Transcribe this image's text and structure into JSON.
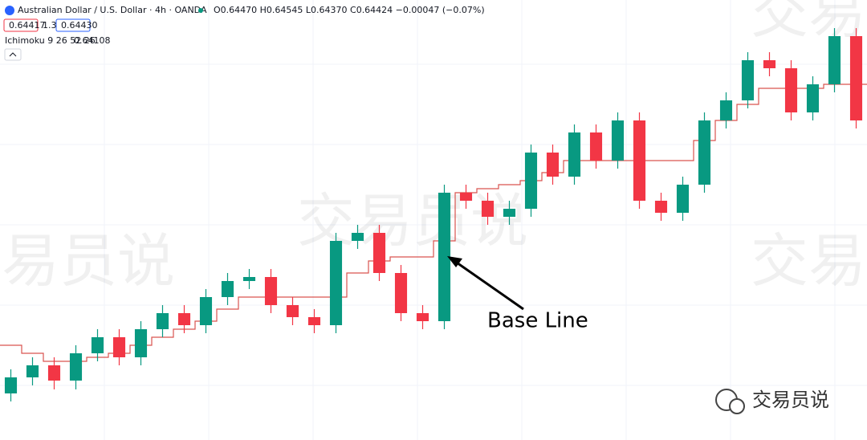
{
  "chart_data": {
    "type": "candlestick",
    "title": "Australian Dollar / U.S. Dollar · 4h · OANDA",
    "ohlc_label": "O0.64470 H0.64545 L0.64370 C0.64424 −0.00047 (−0.07%)",
    "bid": "0.64417",
    "spread": "1.3",
    "ask": "0.64430",
    "indicator": "Ichimoku 9 26 52 26",
    "indicator_value": "0.64108",
    "annotation": "Base Line",
    "watermark": "交易员说",
    "logo": "交易员说",
    "up_color": "#089981",
    "down_color": "#f23645",
    "base_line_color": "#d9534f",
    "ylim": [
      0.63,
      0.6574
    ],
    "candles": {
      "open": [
        0.6329,
        0.6339,
        0.63465,
        0.6337,
        0.6354,
        0.6364,
        0.63515,
        0.6369,
        0.6379,
        0.63715,
        0.6389,
        0.6399,
        0.64015,
        0.6384,
        0.63765,
        0.63715,
        0.6424,
        0.6429,
        0.6404,
        0.6379,
        0.6374,
        0.6454,
        0.6449,
        0.6439,
        0.6444,
        0.6479,
        0.6464,
        0.64915,
        0.6474,
        0.6499,
        0.6449,
        0.64415,
        0.6459,
        0.6499,
        0.65115,
        0.65365,
        0.65315,
        0.6504,
        0.65215,
        0.65515
      ],
      "high": [
        0.6344,
        0.63515,
        0.63515,
        0.6359,
        0.6369,
        0.6369,
        0.6374,
        0.6384,
        0.6384,
        0.6394,
        0.6404,
        0.64065,
        0.64065,
        0.6389,
        0.63815,
        0.6429,
        0.6434,
        0.6434,
        0.6409,
        0.6384,
        0.6459,
        0.6459,
        0.6454,
        0.6449,
        0.6484,
        0.6484,
        0.64965,
        0.64965,
        0.6504,
        0.6504,
        0.6454,
        0.6464,
        0.6504,
        0.65165,
        0.65415,
        0.65415,
        0.65365,
        0.65265,
        0.65565,
        0.65565
      ],
      "low": [
        0.6324,
        0.6334,
        0.63315,
        0.63315,
        0.6349,
        0.63465,
        0.63465,
        0.6364,
        0.63665,
        0.63665,
        0.6384,
        0.6394,
        0.6379,
        0.63715,
        0.63665,
        0.63665,
        0.6419,
        0.6399,
        0.6374,
        0.6369,
        0.6369,
        0.6444,
        0.6434,
        0.6434,
        0.6439,
        0.6459,
        0.6459,
        0.6469,
        0.6469,
        0.6444,
        0.64365,
        0.64365,
        0.6454,
        0.6494,
        0.65065,
        0.65265,
        0.6499,
        0.6499,
        0.65165,
        0.6494
      ],
      "close": [
        0.6339,
        0.63465,
        0.6337,
        0.6354,
        0.6364,
        0.63515,
        0.6369,
        0.6379,
        0.63715,
        0.6389,
        0.6399,
        0.64015,
        0.6384,
        0.63765,
        0.63715,
        0.6424,
        0.6429,
        0.6404,
        0.6379,
        0.6374,
        0.6454,
        0.6449,
        0.6439,
        0.6444,
        0.6479,
        0.6464,
        0.64915,
        0.6474,
        0.6499,
        0.6449,
        0.64415,
        0.6459,
        0.6499,
        0.65115,
        0.65365,
        0.65315,
        0.6504,
        0.65215,
        0.65515,
        0.6499
      ]
    },
    "base_line": [
      0.6359,
      0.6354,
      0.6349,
      0.6349,
      0.63515,
      0.6354,
      0.6359,
      0.6364,
      0.6369,
      0.6374,
      0.63815,
      0.6389,
      0.6389,
      0.6389,
      0.6389,
      0.6389,
      0.6404,
      0.64115,
      0.6414,
      0.6414,
      0.6424,
      0.6454,
      0.64565,
      0.6459,
      0.64615,
      0.64665,
      0.6474,
      0.6474,
      0.6474,
      0.6474,
      0.6474,
      0.6474,
      0.64865,
      0.6499,
      0.6509,
      0.6519,
      0.6519,
      0.6519,
      0.65215,
      0.65215
    ]
  }
}
